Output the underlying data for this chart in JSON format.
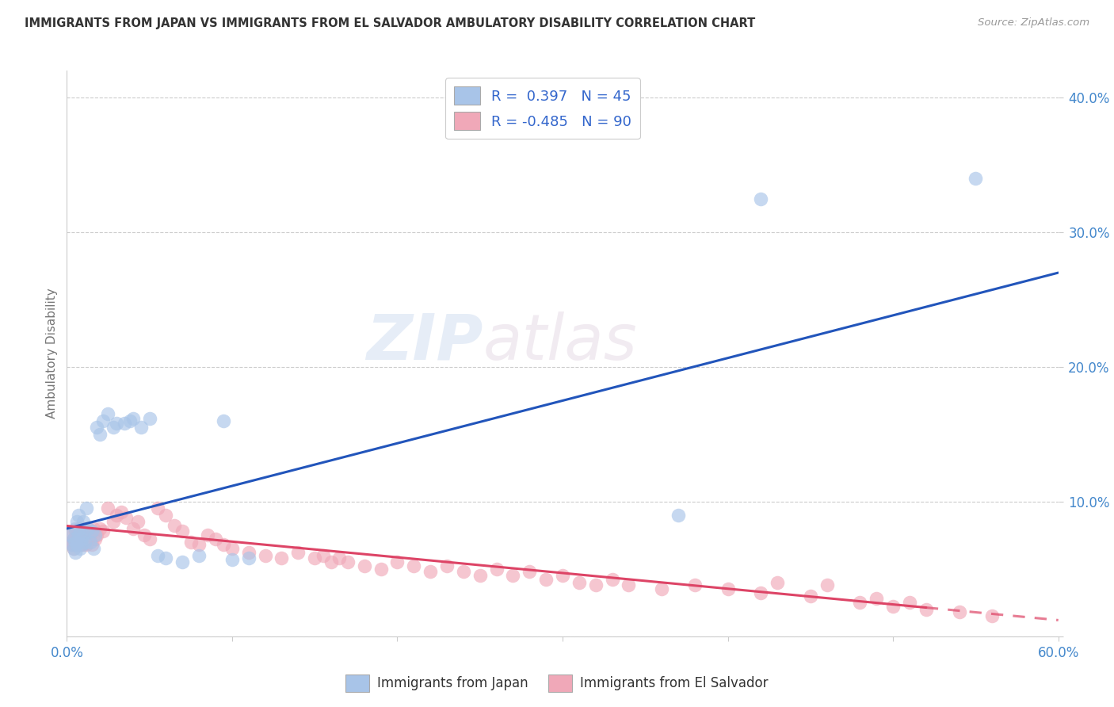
{
  "title": "IMMIGRANTS FROM JAPAN VS IMMIGRANTS FROM EL SALVADOR AMBULATORY DISABILITY CORRELATION CHART",
  "source": "Source: ZipAtlas.com",
  "ylabel": "Ambulatory Disability",
  "xlim": [
    0.0,
    0.6
  ],
  "ylim": [
    0.0,
    0.42
  ],
  "xticks": [
    0.0,
    0.1,
    0.2,
    0.3,
    0.4,
    0.5,
    0.6
  ],
  "xtick_labels": [
    "0.0%",
    "",
    "",
    "",
    "",
    "",
    "60.0%"
  ],
  "yticks": [
    0.0,
    0.1,
    0.2,
    0.3,
    0.4
  ],
  "ytick_labels": [
    "",
    "10.0%",
    "20.0%",
    "30.0%",
    "40.0%"
  ],
  "r_japan": 0.397,
  "n_japan": 45,
  "r_salvador": -0.485,
  "n_salvador": 90,
  "japan_color": "#a8c4e8",
  "salvador_color": "#f0a8b8",
  "japan_line_color": "#2255bb",
  "salvador_line_color": "#dd4466",
  "watermark_zip": "ZIP",
  "watermark_atlas": "atlas",
  "japan_points_x": [
    0.002,
    0.003,
    0.004,
    0.004,
    0.005,
    0.005,
    0.005,
    0.006,
    0.006,
    0.007,
    0.007,
    0.008,
    0.008,
    0.009,
    0.009,
    0.01,
    0.01,
    0.011,
    0.012,
    0.013,
    0.014,
    0.015,
    0.016,
    0.017,
    0.018,
    0.02,
    0.022,
    0.025,
    0.028,
    0.03,
    0.035,
    0.038,
    0.04,
    0.045,
    0.05,
    0.055,
    0.06,
    0.07,
    0.08,
    0.095,
    0.1,
    0.11,
    0.37,
    0.42,
    0.55
  ],
  "japan_points_y": [
    0.075,
    0.068,
    0.072,
    0.065,
    0.08,
    0.07,
    0.062,
    0.085,
    0.068,
    0.09,
    0.075,
    0.065,
    0.08,
    0.072,
    0.068,
    0.085,
    0.075,
    0.07,
    0.095,
    0.08,
    0.07,
    0.078,
    0.065,
    0.075,
    0.155,
    0.15,
    0.16,
    0.165,
    0.155,
    0.158,
    0.158,
    0.16,
    0.162,
    0.155,
    0.162,
    0.06,
    0.058,
    0.055,
    0.06,
    0.16,
    0.057,
    0.058,
    0.09,
    0.325,
    0.34
  ],
  "salvador_points_x": [
    0.002,
    0.003,
    0.003,
    0.004,
    0.004,
    0.005,
    0.005,
    0.006,
    0.006,
    0.007,
    0.007,
    0.008,
    0.008,
    0.009,
    0.009,
    0.01,
    0.01,
    0.011,
    0.011,
    0.012,
    0.012,
    0.013,
    0.013,
    0.014,
    0.015,
    0.015,
    0.016,
    0.017,
    0.018,
    0.02,
    0.022,
    0.025,
    0.028,
    0.03,
    0.033,
    0.036,
    0.04,
    0.043,
    0.047,
    0.05,
    0.055,
    0.06,
    0.065,
    0.07,
    0.075,
    0.08,
    0.085,
    0.09,
    0.095,
    0.1,
    0.11,
    0.12,
    0.13,
    0.14,
    0.15,
    0.155,
    0.16,
    0.165,
    0.17,
    0.18,
    0.19,
    0.2,
    0.21,
    0.22,
    0.23,
    0.24,
    0.25,
    0.26,
    0.27,
    0.28,
    0.29,
    0.3,
    0.31,
    0.32,
    0.33,
    0.34,
    0.36,
    0.38,
    0.4,
    0.42,
    0.43,
    0.45,
    0.46,
    0.48,
    0.49,
    0.5,
    0.51,
    0.52,
    0.54,
    0.56
  ],
  "salvador_points_y": [
    0.075,
    0.07,
    0.068,
    0.072,
    0.065,
    0.078,
    0.07,
    0.075,
    0.068,
    0.08,
    0.072,
    0.075,
    0.068,
    0.08,
    0.072,
    0.075,
    0.068,
    0.08,
    0.072,
    0.075,
    0.068,
    0.08,
    0.072,
    0.075,
    0.078,
    0.068,
    0.08,
    0.072,
    0.075,
    0.08,
    0.078,
    0.095,
    0.085,
    0.09,
    0.092,
    0.088,
    0.08,
    0.085,
    0.075,
    0.072,
    0.095,
    0.09,
    0.082,
    0.078,
    0.07,
    0.068,
    0.075,
    0.072,
    0.068,
    0.065,
    0.062,
    0.06,
    0.058,
    0.062,
    0.058,
    0.06,
    0.055,
    0.058,
    0.055,
    0.052,
    0.05,
    0.055,
    0.052,
    0.048,
    0.052,
    0.048,
    0.045,
    0.05,
    0.045,
    0.048,
    0.042,
    0.045,
    0.04,
    0.038,
    0.042,
    0.038,
    0.035,
    0.038,
    0.035,
    0.032,
    0.04,
    0.03,
    0.038,
    0.025,
    0.028,
    0.022,
    0.025,
    0.02,
    0.018,
    0.015
  ],
  "japan_line_x": [
    0.0,
    0.6
  ],
  "japan_line_y": [
    0.08,
    0.27
  ],
  "salvador_line_x": [
    0.0,
    0.6
  ],
  "salvador_line_y": [
    0.082,
    0.012
  ]
}
